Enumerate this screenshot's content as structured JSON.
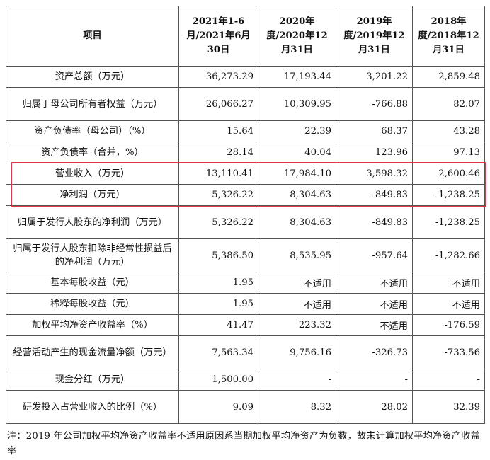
{
  "header": {
    "item": "项目",
    "col1": "2021年1-6月/2021年6月30日",
    "col2": "2020年度/2020年12月31日",
    "col3": "2019年度/2019年12月31日",
    "col4": "2018年度/2018年12月31日"
  },
  "rows": [
    {
      "label": "资产总额（万元）",
      "v": [
        "36,273.29",
        "17,193.44",
        "3,201.22",
        "2,859.48"
      ]
    },
    {
      "label": "归属于母公司所有者权益（万元）",
      "v": [
        "26,066.27",
        "10,309.95",
        "-766.88",
        "82.07"
      ]
    },
    {
      "label": "资产负债率（母公司）（%）",
      "v": [
        "15.64",
        "22.39",
        "68.37",
        "43.28"
      ]
    },
    {
      "label": "资产负债率（合并，%）",
      "v": [
        "28.14",
        "40.04",
        "123.96",
        "97.13"
      ]
    },
    {
      "label": "营业收入（万元）",
      "v": [
        "13,110.41",
        "17,984.10",
        "3,598.32",
        "2,600.46"
      ]
    },
    {
      "label": "净利润（万元）",
      "v": [
        "5,326.22",
        "8,304.63",
        "-849.83",
        "-1,238.25"
      ]
    },
    {
      "label": "归属于发行人股东的净利润（万元）",
      "v": [
        "5,326.22",
        "8,304.63",
        "-849.83",
        "-1,238.25"
      ]
    },
    {
      "label": "归属于发行人股东扣除非经常性损益后的净利润（万元）",
      "v": [
        "5,386.50",
        "8,535.95",
        "-957.64",
        "-1,282.66"
      ]
    },
    {
      "label": "基本每股收益（元）",
      "v": [
        "1.95",
        "不适用",
        "不适用",
        "不适用"
      ]
    },
    {
      "label": "稀释每股收益（元）",
      "v": [
        "1.95",
        "不适用",
        "不适用",
        "不适用"
      ]
    },
    {
      "label": "加权平均净资产收益率（%）",
      "v": [
        "41.47",
        "223.32",
        "不适用",
        "-176.59"
      ]
    },
    {
      "label": "经营活动产生的现金流量净额（万元）",
      "v": [
        "7,563.34",
        "9,756.16",
        "-326.73",
        "-733.56"
      ]
    },
    {
      "label": "现金分红（万元）",
      "v": [
        "1,500.00",
        "-",
        "-",
        "-"
      ]
    },
    {
      "label": "研发投入占营业收入的比例（%）",
      "v": [
        "9.09",
        "8.32",
        "28.02",
        "32.39"
      ]
    }
  ],
  "note": "注：2019 年公司加权平均净资产收益率不适用原因系当期加权平均净资产为负数，故未计算加权平均净资产收益率",
  "highlight_color": "#e0344a"
}
